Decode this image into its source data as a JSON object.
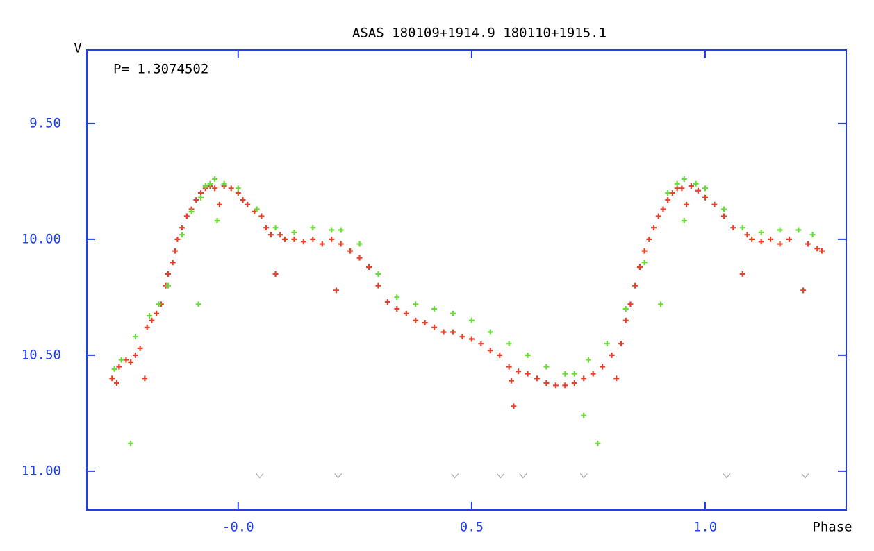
{
  "chart_data": {
    "type": "scatter",
    "title": "ASAS 180109+1914.9 180110+1915.1",
    "annotation": "P= 1.3074502",
    "y_label": "V",
    "x_label": "Phase",
    "xlim": [
      -0.324,
      1.302
    ],
    "ylim": [
      11.168,
      9.183
    ],
    "xticks": [
      {
        "value": 0,
        "label": "-0.0"
      },
      0.5,
      {
        "value": 1,
        "label": "1.0"
      }
    ],
    "yticks": [
      {
        "value": 9.5,
        "label": "9.50"
      },
      {
        "value": 10,
        "label": "10.00"
      },
      {
        "value": 10.5,
        "label": "10.50"
      },
      {
        "value": 11,
        "label": "11.00"
      }
    ],
    "axis_color": "#2040f0",
    "series": [
      {
        "color": "#e8402a",
        "marker": "+",
        "x": [
          -0.27,
          -0.26,
          -0.255,
          -0.24,
          -0.23,
          -0.22,
          -0.21,
          -0.2,
          -0.195,
          -0.185,
          -0.175,
          -0.165,
          -0.155,
          -0.15,
          -0.14,
          -0.135,
          -0.13,
          -0.12,
          -0.11,
          -0.1,
          -0.09,
          -0.08,
          -0.07,
          -0.06,
          -0.05,
          -0.04,
          -0.03,
          -0.015,
          0.0,
          0.01,
          0.02,
          0.035,
          0.05,
          0.06,
          0.07,
          0.08,
          0.09,
          0.1,
          0.12,
          0.14,
          0.16,
          0.18,
          0.2,
          0.21,
          0.22,
          0.24,
          0.26,
          0.28,
          0.3,
          0.32,
          0.34,
          0.36,
          0.38,
          0.4,
          0.42,
          0.44,
          0.46,
          0.48,
          0.5,
          0.52,
          0.54,
          0.56,
          0.58,
          0.585,
          0.59,
          0.6,
          0.62,
          0.64,
          0.66,
          0.68,
          0.7,
          0.72,
          0.74,
          0.76,
          0.78,
          0.8,
          0.81,
          0.82,
          0.83,
          0.84,
          0.85,
          0.86,
          0.87,
          0.88,
          0.89,
          0.9,
          0.91,
          0.92,
          0.93,
          0.94,
          0.95,
          0.96,
          0.97,
          0.985,
          1.0,
          1.02,
          1.04,
          1.06,
          1.08,
          1.09,
          1.1,
          1.12,
          1.14,
          1.16,
          1.18,
          1.21,
          1.22,
          1.24,
          1.25
        ],
        "values": [
          10.6,
          10.62,
          10.55,
          10.52,
          10.53,
          10.5,
          10.47,
          10.6,
          10.38,
          10.35,
          10.32,
          10.28,
          10.2,
          10.15,
          10.1,
          10.05,
          10.0,
          9.95,
          9.9,
          9.87,
          9.83,
          9.8,
          9.78,
          9.77,
          9.78,
          9.85,
          9.77,
          9.78,
          9.8,
          9.83,
          9.85,
          9.88,
          9.9,
          9.95,
          9.98,
          10.15,
          9.98,
          10.0,
          10.0,
          10.01,
          10.0,
          10.02,
          10.0,
          10.22,
          10.02,
          10.05,
          10.08,
          10.12,
          10.2,
          10.27,
          10.3,
          10.32,
          10.35,
          10.36,
          10.38,
          10.4,
          10.4,
          10.42,
          10.43,
          10.45,
          10.48,
          10.5,
          10.55,
          10.61,
          10.72,
          10.57,
          10.58,
          10.6,
          10.62,
          10.63,
          10.63,
          10.62,
          10.6,
          10.58,
          10.55,
          10.5,
          10.6,
          10.45,
          10.35,
          10.28,
          10.2,
          10.12,
          10.05,
          10.0,
          9.95,
          9.9,
          9.87,
          9.83,
          9.8,
          9.78,
          9.78,
          9.85,
          9.77,
          9.79,
          9.82,
          9.85,
          9.9,
          9.95,
          10.15,
          9.98,
          10.0,
          10.01,
          10.0,
          10.02,
          10.0,
          10.22,
          10.02,
          10.04,
          10.05
        ]
      },
      {
        "color": "#66dd33",
        "marker": "+",
        "x": [
          -0.265,
          -0.25,
          -0.22,
          -0.23,
          -0.19,
          -0.17,
          -0.15,
          -0.12,
          -0.1,
          -0.085,
          -0.08,
          -0.07,
          -0.06,
          -0.05,
          -0.045,
          -0.03,
          0.0,
          0.04,
          0.08,
          0.12,
          0.16,
          0.2,
          0.22,
          0.26,
          0.3,
          0.34,
          0.38,
          0.42,
          0.46,
          0.5,
          0.54,
          0.58,
          0.62,
          0.66,
          0.7,
          0.72,
          0.74,
          0.75,
          0.77,
          0.79,
          0.83,
          0.87,
          0.905,
          0.92,
          0.94,
          0.955,
          0.955,
          0.98,
          1.0,
          1.04,
          1.08,
          1.12,
          1.16,
          1.2,
          1.23
        ],
        "values": [
          10.56,
          10.52,
          10.42,
          10.88,
          10.33,
          10.28,
          10.2,
          9.98,
          9.88,
          10.28,
          9.82,
          9.77,
          9.76,
          9.74,
          9.92,
          9.76,
          9.78,
          9.87,
          9.95,
          9.97,
          9.95,
          9.96,
          9.96,
          10.02,
          10.15,
          10.25,
          10.28,
          10.3,
          10.32,
          10.35,
          10.4,
          10.45,
          10.5,
          10.55,
          10.58,
          10.58,
          10.76,
          10.52,
          10.88,
          10.45,
          10.3,
          10.1,
          10.28,
          9.8,
          9.76,
          9.74,
          9.92,
          9.76,
          9.78,
          9.87,
          9.95,
          9.97,
          9.96,
          9.96,
          9.98
        ]
      },
      {
        "color": "#aaaaaa",
        "marker": "v",
        "x": [
          0.046,
          0.214,
          0.464,
          0.562,
          0.61,
          0.74,
          1.046,
          1.214
        ],
        "values": [
          11.02,
          11.02,
          11.02,
          11.02,
          11.02,
          11.02,
          11.02,
          11.02
        ]
      }
    ]
  }
}
